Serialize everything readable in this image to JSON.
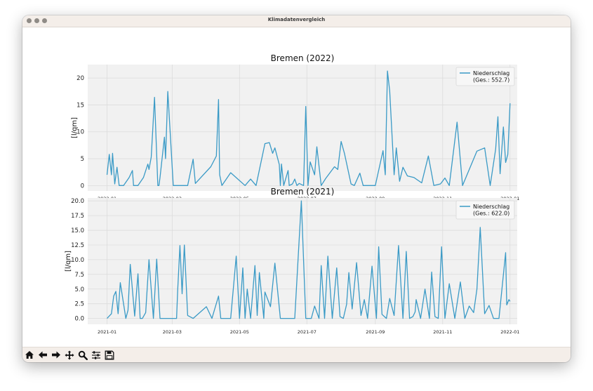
{
  "window": {
    "title": "Klimadatenvergleich"
  },
  "toolbar": {
    "buttons": [
      {
        "icon": "home-icon"
      },
      {
        "icon": "back-arrow-icon"
      },
      {
        "icon": "forward-arrow-icon"
      },
      {
        "icon": "pan-icon"
      },
      {
        "icon": "zoom-icon"
      },
      {
        "icon": "configure-subplots-icon"
      },
      {
        "icon": "save-icon"
      }
    ]
  },
  "chart_data": [
    {
      "type": "line",
      "title": "Bremen (2022)",
      "ylabel": "[l/qm]",
      "xlabel": "",
      "x_ticks": [
        "2022-01",
        "2022-03",
        "2022-05",
        "2022-07",
        "2022-09",
        "2022-11",
        "2023-01"
      ],
      "x_tick_days": [
        0,
        59,
        120,
        181,
        243,
        304,
        365
      ],
      "xlim_days": [
        -17.5,
        371.5
      ],
      "y_ticks": [
        "0",
        "5",
        "10",
        "15",
        "20"
      ],
      "y_tick_values": [
        0,
        5,
        10,
        15,
        20
      ],
      "ylim": [
        -1,
        22.5
      ],
      "grid": true,
      "legend_position": "top-right",
      "color": "#3a9ac6",
      "series": [
        {
          "name": "Niederschlag\n(Ges.: 552.7)",
          "x_days": [
            0,
            2,
            4,
            5,
            7,
            9,
            11,
            15,
            20,
            23,
            24,
            28,
            33,
            37,
            38,
            40,
            43,
            46,
            47,
            48,
            52,
            53,
            55,
            60,
            63,
            73,
            78,
            80,
            94,
            99,
            101,
            102,
            104,
            112,
            125,
            130,
            135,
            143,
            147,
            150,
            152,
            156,
            157,
            158,
            160,
            164,
            165,
            168,
            170,
            172,
            174,
            178,
            180,
            182,
            184,
            188,
            190,
            194,
            198,
            206,
            209,
            212,
            215,
            221,
            224,
            229,
            232,
            243,
            250,
            252,
            254,
            256,
            260,
            262,
            265,
            268,
            272,
            278,
            285,
            291,
            296,
            302,
            306,
            310,
            317,
            322,
            335,
            342,
            347,
            352,
            354,
            356,
            359,
            361,
            363,
            365
          ],
          "y_values": [
            2,
            5.8,
            2,
            6,
            0.3,
            3.4,
            0,
            0,
            1.5,
            2.8,
            0,
            0,
            1.5,
            4,
            3,
            5.3,
            16.4,
            0,
            0,
            1.5,
            9,
            5,
            17.5,
            0,
            0,
            0,
            4.9,
            0.4,
            3.5,
            5.5,
            16,
            2,
            0,
            2.4,
            0,
            1.2,
            0,
            7.8,
            8,
            6,
            7,
            3.9,
            0,
            4,
            0,
            2.8,
            0,
            0.3,
            1.2,
            0,
            0.4,
            0,
            14.7,
            0,
            4.4,
            2,
            7.2,
            0,
            1.3,
            3.5,
            3,
            8.2,
            6,
            0.3,
            0,
            2.3,
            0,
            0,
            6.5,
            2,
            21.3,
            17.6,
            2,
            7,
            0.8,
            3.4,
            1.8,
            1.5,
            0.5,
            5.5,
            0,
            0.3,
            1.4,
            0,
            11.8,
            0,
            6.4,
            7,
            0,
            6.8,
            12.8,
            2.2,
            10.9,
            4.3,
            5.8,
            15.3
          ]
        }
      ]
    },
    {
      "type": "line",
      "title": "Bremen (2021)",
      "ylabel": "[l/qm]",
      "xlabel": "",
      "x_ticks": [
        "2021-01",
        "2021-03",
        "2021-05",
        "2021-07",
        "2021-09",
        "2021-11",
        "2022-01"
      ],
      "x_tick_days": [
        0,
        59,
        120,
        181,
        243,
        304,
        365
      ],
      "xlim_days": [
        -17.5,
        371.5
      ],
      "y_ticks": [
        "0.0",
        "2.5",
        "5.0",
        "7.5",
        "10.0",
        "12.5",
        "15.0",
        "17.5",
        "20.0"
      ],
      "y_tick_values": [
        0,
        2.5,
        5,
        7.5,
        10,
        12.5,
        15,
        17.5,
        20
      ],
      "ylim": [
        -1,
        20.5
      ],
      "grid": true,
      "legend_position": "top-right",
      "color": "#3a9ac6",
      "series": [
        {
          "name": "Niederschlag\n(Ges.: 622.0)",
          "x_days": [
            0,
            4,
            6,
            8,
            10,
            12,
            17,
            19,
            21,
            25,
            28,
            30,
            32,
            35,
            38,
            42,
            45,
            48,
            56,
            63,
            64,
            66,
            68,
            70,
            73,
            78,
            90,
            95,
            101,
            103,
            106,
            112,
            117,
            120,
            123,
            125,
            127,
            130,
            134,
            136,
            138,
            142,
            143,
            148,
            152,
            157,
            161,
            165,
            168,
            170,
            176,
            180,
            185,
            188,
            192,
            194,
            197,
            200,
            204,
            208,
            211,
            214,
            217,
            219,
            222,
            226,
            230,
            233,
            236,
            240,
            244,
            246,
            249,
            253,
            256,
            260,
            264,
            268,
            271,
            274,
            277,
            279,
            280,
            284,
            288,
            292,
            294,
            297,
            300,
            303,
            306,
            310,
            315,
            320,
            324,
            328,
            332,
            335,
            338,
            342,
            346,
            350,
            355,
            361,
            362,
            364,
            365
          ],
          "y_values": [
            0,
            0.8,
            3.8,
            4.6,
            0.8,
            6.1,
            0,
            1.4,
            9.2,
            0.4,
            7.6,
            0,
            0,
            1,
            10,
            0,
            10.1,
            0,
            0,
            0,
            4.8,
            12.4,
            4.2,
            12.5,
            0.5,
            0,
            2,
            0,
            3.8,
            0,
            0,
            0,
            10.6,
            0,
            8.6,
            0,
            5,
            0,
            9,
            0.5,
            7.8,
            0,
            4.5,
            2,
            9.4,
            0,
            0,
            0,
            0,
            0,
            20,
            0,
            0,
            2.1,
            0,
            9,
            0,
            10.6,
            0,
            8.6,
            0.3,
            0,
            2.4,
            7.8,
            1.6,
            9.5,
            0.5,
            3.2,
            0,
            8.9,
            0,
            12.2,
            0.7,
            0,
            3.4,
            0.5,
            12.4,
            0,
            11.4,
            0,
            0.3,
            1.1,
            3.2,
            0,
            5,
            0,
            7.9,
            0.3,
            0,
            12.2,
            0,
            5.9,
            0,
            6.2,
            0,
            2.1,
            1,
            5,
            15.5,
            0.8,
            2.2,
            0,
            0,
            11.2,
            2.3,
            3.2,
            2.9
          ]
        }
      ]
    }
  ]
}
